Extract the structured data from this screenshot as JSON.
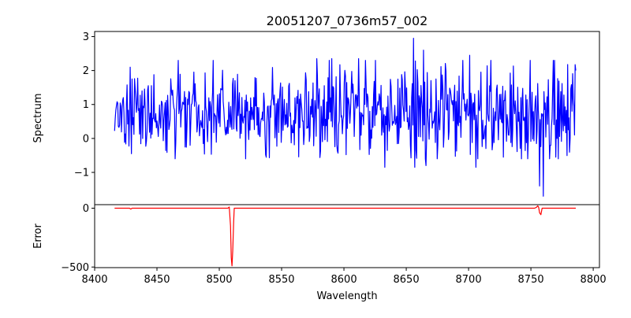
{
  "chart_data": {
    "type": "line",
    "title": "20051207_0736m57_002",
    "xlabel": "Wavelength",
    "xlim": [
      8400,
      8805
    ],
    "xticks": [
      8400,
      8450,
      8500,
      8550,
      8600,
      8650,
      8700,
      8750,
      8800
    ],
    "x_range": [
      8416,
      8786
    ],
    "panels": [
      {
        "ylabel": "Spectrum",
        "ylim": [
          -1.95,
          3.15
        ],
        "yticks": [
          -1,
          0,
          1,
          2,
          3
        ],
        "series": [
          {
            "color": "#0000ff",
            "approx_samples": 740,
            "baseline": 0.8,
            "noise_sd": 0.55,
            "noise_sd_growth": 0.35,
            "features": [
              {
                "x": 8428.5,
                "y": 2.1
              },
              {
                "x": 8429.5,
                "y": -0.45
              },
              {
                "x": 8464.5,
                "y": -0.6
              },
              {
                "x": 8578.0,
                "y": 2.35
              },
              {
                "x": 8590.0,
                "y": 2.35
              },
              {
                "x": 8612.0,
                "y": 2.35
              },
              {
                "x": 8633.0,
                "y": -0.85
              },
              {
                "x": 8656.0,
                "y": 2.95
              },
              {
                "x": 8656.8,
                "y": -0.85
              },
              {
                "x": 8664.0,
                "y": 2.6
              },
              {
                "x": 8666.0,
                "y": -0.8
              },
              {
                "x": 8701.0,
                "y": 2.45
              },
              {
                "x": 8706.0,
                "y": -0.85
              },
              {
                "x": 8757.0,
                "y": -1.4
              },
              {
                "x": 8760.0,
                "y": -1.7
              },
              {
                "x": 8770.0,
                "y": -0.55
              },
              {
                "x": 8786.0,
                "y": 2.0
              }
            ]
          }
        ]
      },
      {
        "ylabel": "Error",
        "ylim": [
          -505,
          30
        ],
        "yticks": [
          0,
          -500
        ],
        "series": [
          {
            "color": "#ff0000",
            "baseline": 0,
            "points": [
              [
                8416,
                0
              ],
              [
                8428,
                0
              ],
              [
                8429,
                -8
              ],
              [
                8430,
                0
              ],
              [
                8507,
                0
              ],
              [
                8508,
                10
              ],
              [
                8509,
                -150
              ],
              [
                8509.6,
                -420
              ],
              [
                8510.2,
                -490
              ],
              [
                8510.8,
                -360
              ],
              [
                8511.5,
                -120
              ],
              [
                8512,
                0
              ],
              [
                8753,
                0
              ],
              [
                8754.5,
                8
              ],
              [
                8755.5,
                20
              ],
              [
                8756.2,
                8
              ],
              [
                8757,
                -40
              ],
              [
                8758,
                -55
              ],
              [
                8759,
                0
              ],
              [
                8786,
                0
              ]
            ]
          }
        ]
      }
    ]
  }
}
